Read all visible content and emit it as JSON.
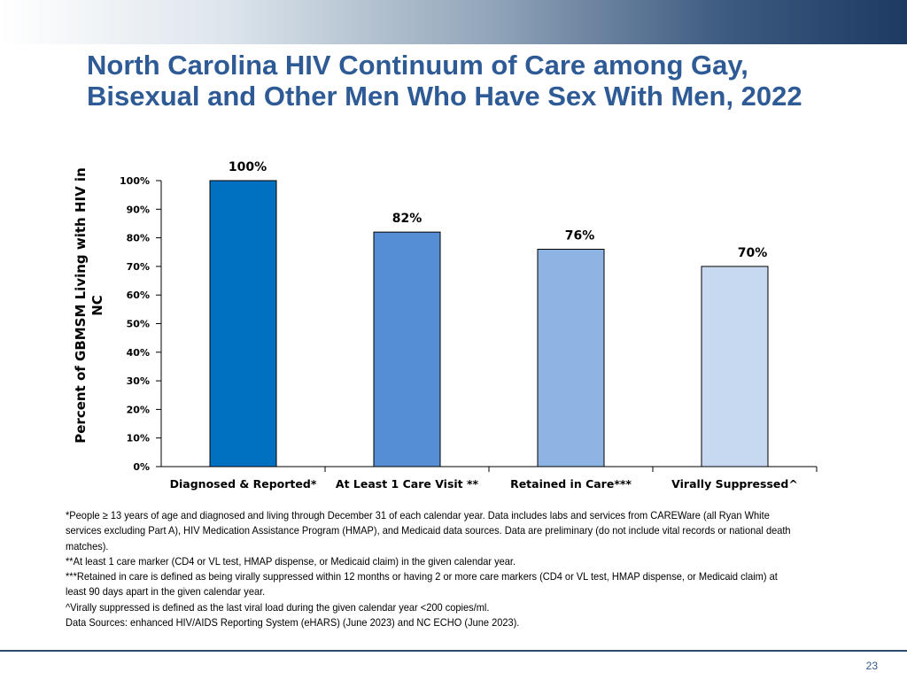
{
  "slide": {
    "title": "North Carolina HIV Continuum of Care among Gay, Bisexual and Other Men Who Have Sex With Men, 2022",
    "page_number": "23"
  },
  "chart_data": {
    "type": "bar",
    "title": "North Carolina HIV Continuum of Care among Gay, Bisexual and Other Men Who Have Sex With Men, 2022",
    "xlabel": "",
    "ylabel": "Percent of GBMSM Living with HIV in NC",
    "categories": [
      "Diagnosed & Reported*",
      "At Least 1 Care Visit **",
      "Retained in Care***",
      "Virally Suppressed^"
    ],
    "values": [
      100,
      82,
      76,
      70
    ],
    "value_labels": [
      "100%",
      "82%",
      "76%",
      "70%"
    ],
    "colors": [
      "#0070c0",
      "#558ed5",
      "#8eb4e3",
      "#c6d9f1"
    ],
    "ylim": [
      0,
      100
    ],
    "yticks": [
      0,
      10,
      20,
      30,
      40,
      50,
      60,
      70,
      80,
      90,
      100
    ],
    "ytick_labels": [
      "0%",
      "10%",
      "20%",
      "30%",
      "40%",
      "50%",
      "60%",
      "70%",
      "80%",
      "90%",
      "100%"
    ],
    "grid": false,
    "legend": "none"
  },
  "footnotes": [
    "*People ≥ 13 years of age and diagnosed and living through December 31 of each calendar year. Data includes labs and services from CAREWare (all Ryan White services excluding Part A), HIV Medication Assistance Program (HMAP), and Medicaid data sources. Data are preliminary (do not include vital records or national death matches).",
    "**At least 1 care marker (CD4 or VL test, HMAP dispense, or Medicaid claim) in the given calendar year.",
    "***Retained in care is defined as being virally suppressed within 12 months or having 2 or more care markers (CD4 or VL test, HMAP dispense, or Medicaid claim) at least 90 days apart in the given calendar year.",
    "^Virally suppressed is defined as the last viral load during the given calendar year <200 copies/ml.",
    "Data Sources: enhanced HIV/AIDS Reporting System (eHARS) (June 2023) and NC ECHO (June 2023)."
  ]
}
